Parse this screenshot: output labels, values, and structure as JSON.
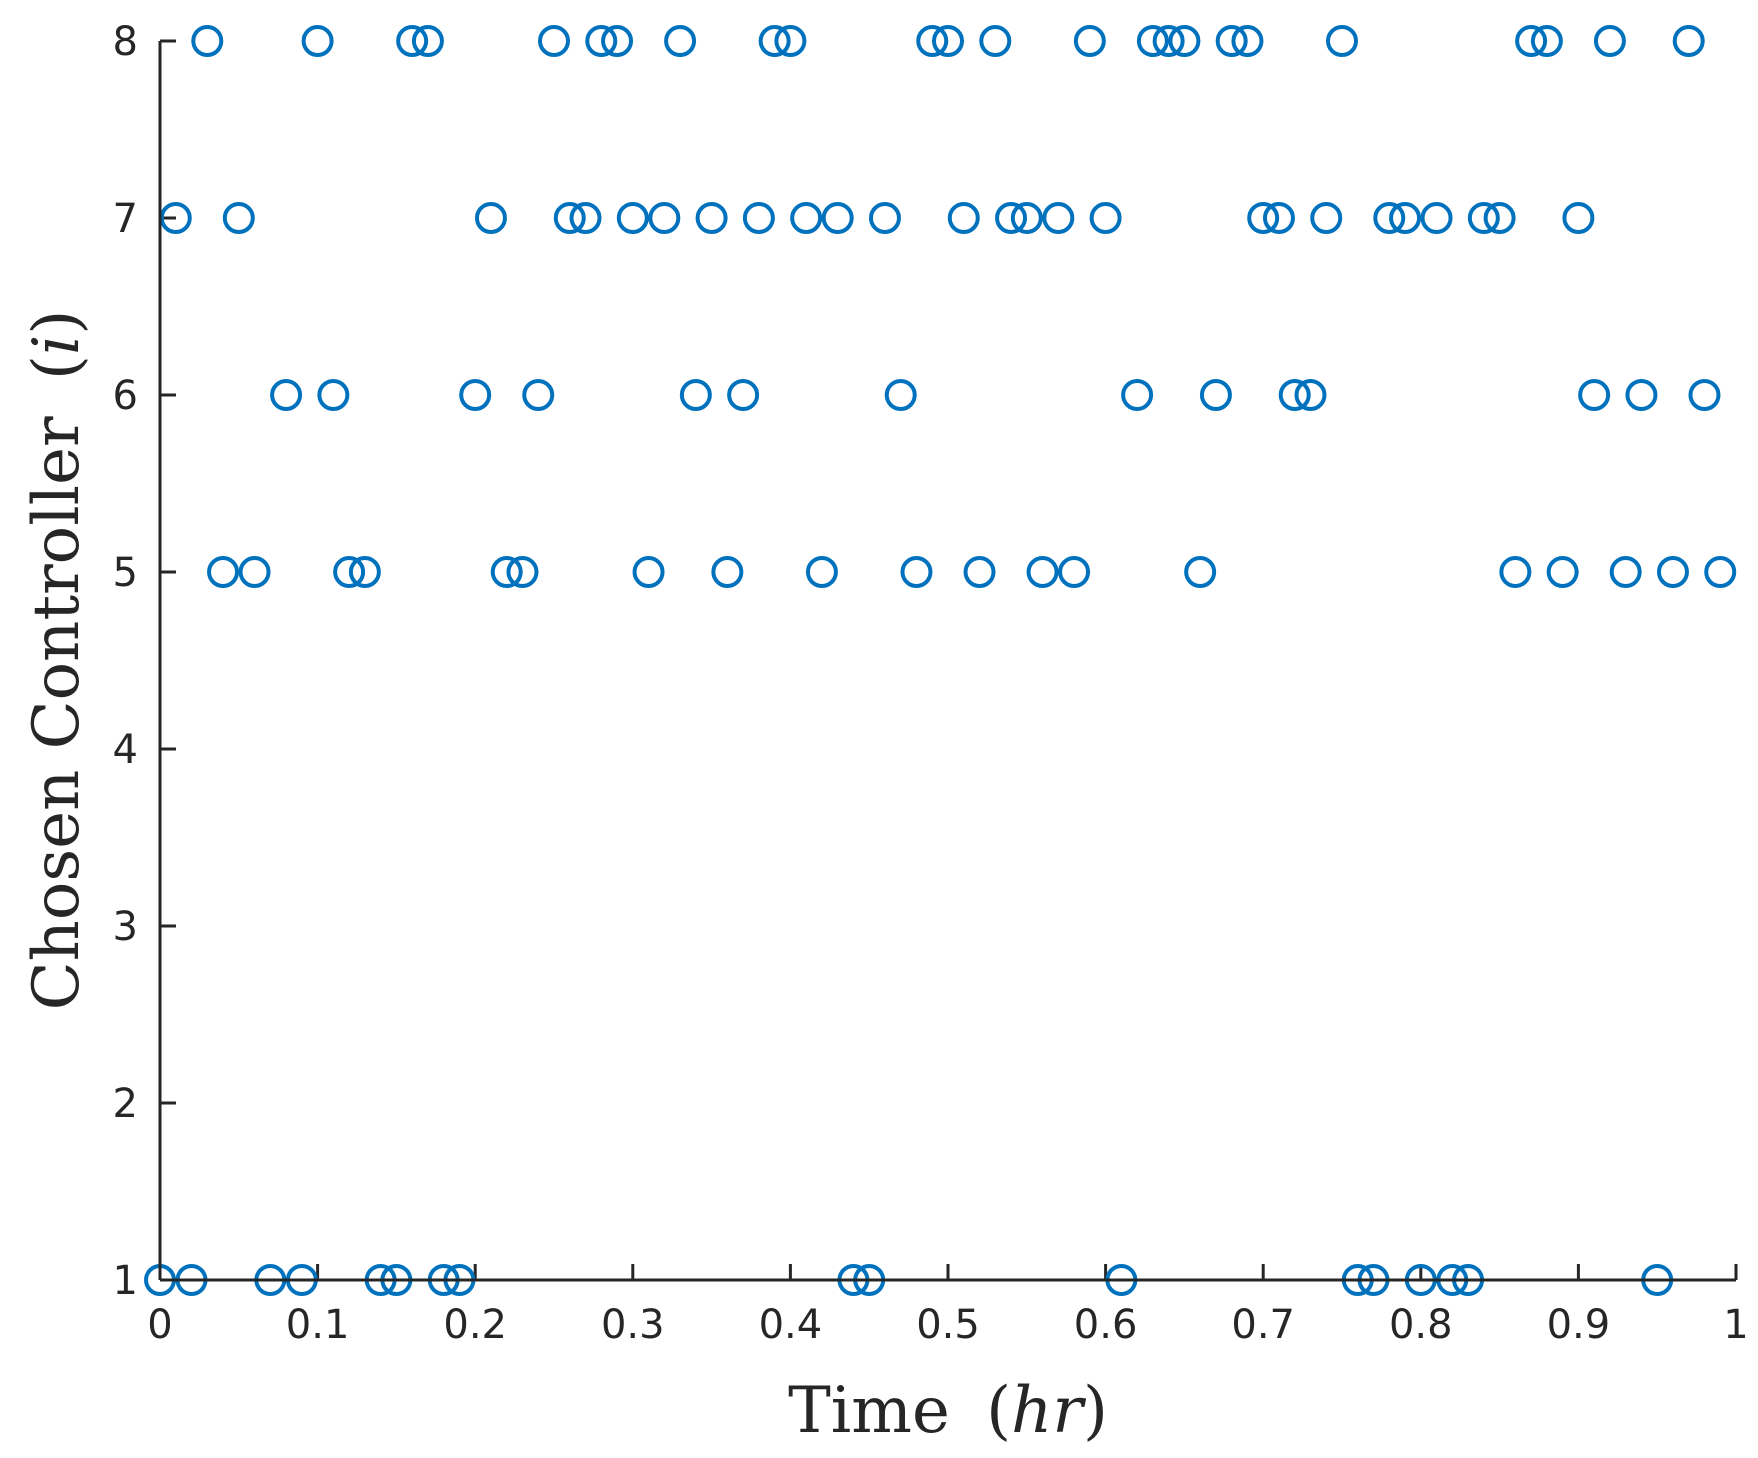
{
  "chart_data": {
    "type": "scatter",
    "title": "",
    "xlabel": "Time",
    "xlabel_unit": "hr",
    "ylabel": "Chosen Controller",
    "ylabel_unit": "i",
    "xlim": [
      0,
      1
    ],
    "ylim": [
      1,
      8
    ],
    "xticks": [
      "0",
      "0.1",
      "0.2",
      "0.3",
      "0.4",
      "0.5",
      "0.6",
      "0.7",
      "0.8",
      "0.9",
      "1"
    ],
    "yticks": [
      "1",
      "2",
      "3",
      "4",
      "5",
      "6",
      "7",
      "8"
    ],
    "grid": false,
    "marker": "open-circle",
    "marker_color": "#0072BD",
    "series": [
      {
        "points": [
          [
            0.0,
            1
          ],
          [
            0.01,
            7
          ],
          [
            0.02,
            1
          ],
          [
            0.03,
            8
          ],
          [
            0.04,
            5
          ],
          [
            0.05,
            7
          ],
          [
            0.06,
            5
          ],
          [
            0.07,
            1
          ],
          [
            0.08,
            6
          ],
          [
            0.09,
            1
          ],
          [
            0.1,
            8
          ],
          [
            0.11,
            6
          ],
          [
            0.12,
            5
          ],
          [
            0.13,
            5
          ],
          [
            0.14,
            1
          ],
          [
            0.15,
            1
          ],
          [
            0.16,
            8
          ],
          [
            0.17,
            8
          ],
          [
            0.18,
            1
          ],
          [
            0.19,
            1
          ],
          [
            0.2,
            6
          ],
          [
            0.21,
            7
          ],
          [
            0.22,
            5
          ],
          [
            0.23,
            5
          ],
          [
            0.24,
            6
          ],
          [
            0.25,
            8
          ],
          [
            0.26,
            7
          ],
          [
            0.27,
            7
          ],
          [
            0.28,
            8
          ],
          [
            0.29,
            8
          ],
          [
            0.3,
            7
          ],
          [
            0.31,
            5
          ],
          [
            0.32,
            7
          ],
          [
            0.33,
            8
          ],
          [
            0.34,
            6
          ],
          [
            0.35,
            7
          ],
          [
            0.36,
            5
          ],
          [
            0.37,
            6
          ],
          [
            0.38,
            7
          ],
          [
            0.39,
            8
          ],
          [
            0.4,
            8
          ],
          [
            0.41,
            7
          ],
          [
            0.42,
            5
          ],
          [
            0.43,
            7
          ],
          [
            0.44,
            1
          ],
          [
            0.45,
            1
          ],
          [
            0.46,
            7
          ],
          [
            0.47,
            6
          ],
          [
            0.48,
            5
          ],
          [
            0.49,
            8
          ],
          [
            0.5,
            8
          ],
          [
            0.51,
            7
          ],
          [
            0.52,
            5
          ],
          [
            0.53,
            8
          ],
          [
            0.54,
            7
          ],
          [
            0.55,
            7
          ],
          [
            0.56,
            5
          ],
          [
            0.57,
            7
          ],
          [
            0.58,
            5
          ],
          [
            0.59,
            8
          ],
          [
            0.6,
            7
          ],
          [
            0.61,
            1
          ],
          [
            0.62,
            6
          ],
          [
            0.63,
            8
          ],
          [
            0.64,
            8
          ],
          [
            0.65,
            8
          ],
          [
            0.66,
            5
          ],
          [
            0.67,
            6
          ],
          [
            0.68,
            8
          ],
          [
            0.69,
            8
          ],
          [
            0.7,
            7
          ],
          [
            0.71,
            7
          ],
          [
            0.72,
            6
          ],
          [
            0.73,
            6
          ],
          [
            0.74,
            7
          ],
          [
            0.75,
            8
          ],
          [
            0.76,
            1
          ],
          [
            0.77,
            1
          ],
          [
            0.78,
            7
          ],
          [
            0.79,
            7
          ],
          [
            0.8,
            1
          ],
          [
            0.81,
            7
          ],
          [
            0.82,
            1
          ],
          [
            0.83,
            1
          ],
          [
            0.84,
            7
          ],
          [
            0.85,
            7
          ],
          [
            0.86,
            5
          ],
          [
            0.87,
            8
          ],
          [
            0.88,
            8
          ],
          [
            0.89,
            5
          ],
          [
            0.9,
            7
          ],
          [
            0.91,
            6
          ],
          [
            0.92,
            8
          ],
          [
            0.93,
            5
          ],
          [
            0.94,
            6
          ],
          [
            0.95,
            1
          ],
          [
            0.96,
            5
          ],
          [
            0.97,
            8
          ],
          [
            0.98,
            6
          ],
          [
            0.99,
            5
          ]
        ]
      }
    ]
  }
}
